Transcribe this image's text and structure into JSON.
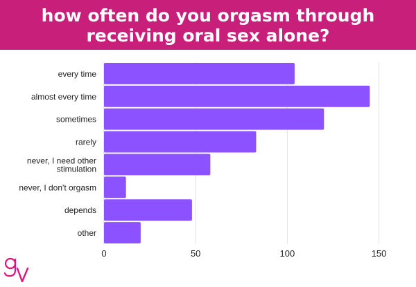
{
  "header": {
    "title_line1": "how often do you orgasm through",
    "title_line2": "receiving oral sex alone?",
    "background": "#c8207a"
  },
  "brand": {
    "logo_text": "gV",
    "color": "#e0117a"
  },
  "chart_data": {
    "type": "bar",
    "orientation": "horizontal",
    "categories": [
      "every time",
      "almost every time",
      "sometimes",
      "rarely",
      "never, I need other stimulation",
      "never, I don't orgasm",
      "depends",
      "other"
    ],
    "category_display": [
      [
        "every time"
      ],
      [
        "almost every time"
      ],
      [
        "sometimes"
      ],
      [
        "rarely"
      ],
      [
        "never, I need other",
        "stimulation"
      ],
      [
        "never, I don't orgasm"
      ],
      [
        "depends"
      ],
      [
        "other"
      ]
    ],
    "values": [
      104,
      145,
      120,
      83,
      58,
      12,
      48,
      20
    ],
    "xlim": [
      0,
      160
    ],
    "xticks": [
      0,
      50,
      100,
      150
    ],
    "grid": true,
    "bar_color": "#8c52ff",
    "title": "",
    "xlabel": "",
    "ylabel": ""
  }
}
